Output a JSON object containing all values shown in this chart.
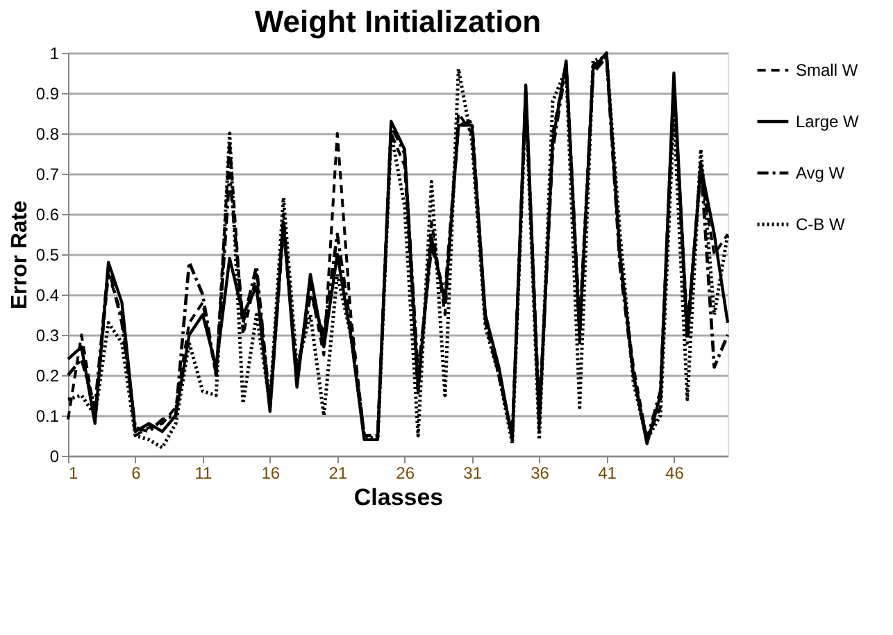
{
  "chart_data": {
    "type": "line",
    "title": "Weight Initialization",
    "xlabel": "Classes",
    "ylabel": "Error Rate",
    "x": [
      1,
      2,
      3,
      4,
      5,
      6,
      7,
      8,
      9,
      10,
      11,
      12,
      13,
      14,
      15,
      16,
      17,
      18,
      19,
      20,
      21,
      22,
      23,
      24,
      25,
      26,
      27,
      28,
      29,
      30,
      31,
      32,
      33,
      34,
      35,
      36,
      37,
      38,
      39,
      40,
      41,
      42,
      43,
      44,
      45,
      46,
      47,
      48,
      49,
      50
    ],
    "xlim": [
      1,
      50
    ],
    "xticks": [
      1,
      6,
      11,
      16,
      21,
      26,
      31,
      36,
      41,
      46
    ],
    "ylim": [
      0,
      1
    ],
    "yticks": [
      0,
      0.1,
      0.2,
      0.3,
      0.4,
      0.5,
      0.6,
      0.7,
      0.8,
      0.9,
      1
    ],
    "grid": "y",
    "legend": "right",
    "marker": "none",
    "series": [
      {
        "name": "Small W",
        "color": "#000000",
        "line_style": "dashed",
        "values": [
          0.09,
          0.3,
          0.1,
          0.45,
          0.35,
          0.05,
          0.07,
          0.08,
          0.12,
          0.33,
          0.38,
          0.2,
          0.78,
          0.3,
          0.45,
          0.13,
          0.6,
          0.2,
          0.42,
          0.25,
          0.8,
          0.35,
          0.05,
          0.05,
          0.8,
          0.72,
          0.15,
          0.58,
          0.35,
          0.85,
          0.8,
          0.33,
          0.2,
          0.05,
          0.9,
          0.06,
          0.8,
          0.97,
          0.28,
          0.97,
          0.99,
          0.48,
          0.22,
          0.04,
          0.12,
          0.93,
          0.32,
          0.7,
          0.5,
          0.55
        ]
      },
      {
        "name": "Large W",
        "color": "#000000",
        "line_style": "solid",
        "values": [
          0.24,
          0.27,
          0.08,
          0.48,
          0.38,
          0.06,
          0.08,
          0.06,
          0.1,
          0.3,
          0.35,
          0.22,
          0.49,
          0.35,
          0.42,
          0.11,
          0.58,
          0.17,
          0.45,
          0.27,
          0.5,
          0.3,
          0.04,
          0.04,
          0.83,
          0.76,
          0.17,
          0.54,
          0.38,
          0.82,
          0.82,
          0.35,
          0.22,
          0.04,
          0.92,
          0.08,
          0.78,
          0.98,
          0.3,
          0.96,
          1.0,
          0.5,
          0.2,
          0.03,
          0.15,
          0.95,
          0.3,
          0.72,
          0.55,
          0.33
        ]
      },
      {
        "name": "Avg W",
        "color": "#000000",
        "line_style": "dashdot",
        "values": [
          0.2,
          0.24,
          0.12,
          0.47,
          0.33,
          0.07,
          0.06,
          0.09,
          0.1,
          0.48,
          0.4,
          0.2,
          0.7,
          0.33,
          0.47,
          0.12,
          0.57,
          0.2,
          0.4,
          0.3,
          0.55,
          0.32,
          0.05,
          0.05,
          0.82,
          0.75,
          0.2,
          0.52,
          0.4,
          0.82,
          0.83,
          0.34,
          0.2,
          0.05,
          0.9,
          0.1,
          0.76,
          0.97,
          0.32,
          0.95,
          0.99,
          0.47,
          0.2,
          0.04,
          0.16,
          0.92,
          0.28,
          0.73,
          0.22,
          0.3
        ]
      },
      {
        "name": "C-B W",
        "color": "#000000",
        "line_style": "dotted",
        "values": [
          0.14,
          0.15,
          0.1,
          0.33,
          0.28,
          0.05,
          0.04,
          0.02,
          0.08,
          0.28,
          0.16,
          0.15,
          0.8,
          0.13,
          0.35,
          0.13,
          0.64,
          0.22,
          0.35,
          0.1,
          0.45,
          0.3,
          0.05,
          0.04,
          0.8,
          0.62,
          0.05,
          0.68,
          0.15,
          0.96,
          0.78,
          0.32,
          0.2,
          0.03,
          0.88,
          0.04,
          0.88,
          0.96,
          0.12,
          0.98,
          0.99,
          0.55,
          0.18,
          0.04,
          0.1,
          0.85,
          0.14,
          0.76,
          0.35,
          0.55
        ]
      }
    ]
  }
}
